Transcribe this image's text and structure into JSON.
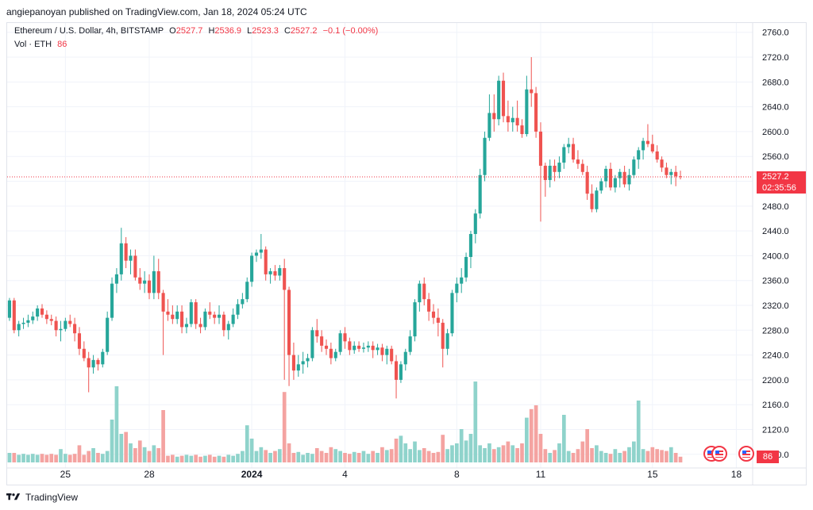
{
  "header": {
    "published_text": "angiepanoyan published on TradingView.com, Jan 18, 2024 05:24 UTC"
  },
  "legend": {
    "symbol": "Ethereum / U.S. Dollar, 4h, BITSTAMP",
    "open_label": "O",
    "open": "2527.7",
    "high_label": "H",
    "high": "2536.9",
    "low_label": "L",
    "low": "2523.3",
    "close_label": "C",
    "close": "2527.2",
    "change": "−0.1 (−0.00%)",
    "vol_label": "Vol · ETH",
    "vol": "86"
  },
  "price_tag": {
    "price": "2527.2",
    "countdown": "02:35:56"
  },
  "volume_tag": "86",
  "footer": {
    "brand": "TradingView"
  },
  "colors": {
    "up": "#26a69a",
    "down": "#ef5350",
    "up_vol": "#8fd3cb",
    "down_vol": "#f4a3a1",
    "tag": "#f23645",
    "grid": "#f0f3fa"
  },
  "icons": [
    "us-flag-icon",
    "us-flag-icon",
    "us-flag-icon",
    "tradingview-logo-icon"
  ],
  "chart_data": {
    "type": "candlestick",
    "title": "Ethereum / U.S. Dollar, 4h, BITSTAMP",
    "y_ticks": [
      2080,
      2120,
      2160,
      2200,
      2240,
      2280,
      2320,
      2360,
      2400,
      2440,
      2480,
      2520,
      2560,
      2600,
      2640,
      2680,
      2720,
      2760
    ],
    "y_tick_labels": [
      "2080.0",
      "2120.0",
      "2160.0",
      "2200.0",
      "2240.0",
      "2280.0",
      "2320.0",
      "2360.0",
      "2400.0",
      "2440.0",
      "2480.0",
      "2520.0",
      "2560.0",
      "2600.0",
      "2640.0",
      "2680.0",
      "2720.0",
      "2760.0"
    ],
    "ylim": [
      2058,
      2775
    ],
    "x_tick_labels": [
      {
        "label": "25",
        "bar": 12
      },
      {
        "label": "28",
        "bar": 30
      },
      {
        "label": "2024",
        "bar": 52
      },
      {
        "label": "4",
        "bar": 72
      },
      {
        "label": "8",
        "bar": 96
      },
      {
        "label": "11",
        "bar": 114
      },
      {
        "label": "15",
        "bar": 138
      },
      {
        "label": "18",
        "bar": 156
      }
    ],
    "bar_count": 160,
    "candles": [
      [
        2300,
        2332,
        2295,
        2328
      ],
      [
        2328,
        2332,
        2275,
        2280
      ],
      [
        2280,
        2295,
        2270,
        2290
      ],
      [
        2290,
        2300,
        2282,
        2292
      ],
      [
        2292,
        2305,
        2285,
        2296
      ],
      [
        2296,
        2310,
        2290,
        2302
      ],
      [
        2302,
        2320,
        2295,
        2315
      ],
      [
        2315,
        2322,
        2300,
        2305
      ],
      [
        2305,
        2312,
        2290,
        2298
      ],
      [
        2298,
        2305,
        2288,
        2295
      ],
      [
        2295,
        2302,
        2270,
        2280
      ],
      [
        2280,
        2295,
        2262,
        2282
      ],
      [
        2282,
        2300,
        2278,
        2295
      ],
      [
        2295,
        2305,
        2285,
        2290
      ],
      [
        2290,
        2300,
        2262,
        2275
      ],
      [
        2275,
        2285,
        2240,
        2250
      ],
      [
        2250,
        2262,
        2230,
        2235
      ],
      [
        2235,
        2245,
        2180,
        2220
      ],
      [
        2220,
        2240,
        2210,
        2232
      ],
      [
        2232,
        2235,
        2215,
        2225
      ],
      [
        2225,
        2250,
        2220,
        2245
      ],
      [
        2245,
        2310,
        2240,
        2300
      ],
      [
        2300,
        2365,
        2295,
        2355
      ],
      [
        2355,
        2380,
        2340,
        2370
      ],
      [
        2370,
        2445,
        2360,
        2420
      ],
      [
        2420,
        2430,
        2380,
        2392
      ],
      [
        2392,
        2410,
        2370,
        2400
      ],
      [
        2400,
        2410,
        2360,
        2365
      ],
      [
        2365,
        2380,
        2345,
        2355
      ],
      [
        2355,
        2375,
        2340,
        2360
      ],
      [
        2360,
        2370,
        2330,
        2340
      ],
      [
        2340,
        2400,
        2330,
        2375
      ],
      [
        2375,
        2395,
        2330,
        2340
      ],
      [
        2340,
        2345,
        2240,
        2310
      ],
      [
        2310,
        2330,
        2295,
        2305
      ],
      [
        2305,
        2320,
        2290,
        2298
      ],
      [
        2298,
        2320,
        2290,
        2310
      ],
      [
        2310,
        2320,
        2275,
        2285
      ],
      [
        2285,
        2300,
        2275,
        2290
      ],
      [
        2290,
        2330,
        2285,
        2325
      ],
      [
        2325,
        2330,
        2282,
        2290
      ],
      [
        2290,
        2300,
        2275,
        2285
      ],
      [
        2285,
        2315,
        2280,
        2310
      ],
      [
        2310,
        2325,
        2298,
        2305
      ],
      [
        2305,
        2310,
        2290,
        2300
      ],
      [
        2300,
        2320,
        2290,
        2305
      ],
      [
        2305,
        2310,
        2270,
        2280
      ],
      [
        2280,
        2295,
        2265,
        2290
      ],
      [
        2290,
        2315,
        2285,
        2305
      ],
      [
        2305,
        2330,
        2298,
        2322
      ],
      [
        2322,
        2340,
        2315,
        2330
      ],
      [
        2330,
        2365,
        2325,
        2358
      ],
      [
        2358,
        2405,
        2350,
        2400
      ],
      [
        2400,
        2410,
        2390,
        2405
      ],
      [
        2405,
        2435,
        2395,
        2410
      ],
      [
        2410,
        2415,
        2360,
        2370
      ],
      [
        2370,
        2380,
        2355,
        2375
      ],
      [
        2375,
        2385,
        2360,
        2368
      ],
      [
        2368,
        2385,
        2360,
        2380
      ],
      [
        2380,
        2395,
        2200,
        2345
      ],
      [
        2345,
        2350,
        2190,
        2240
      ],
      [
        2240,
        2260,
        2200,
        2215
      ],
      [
        2215,
        2240,
        2205,
        2225
      ],
      [
        2225,
        2245,
        2210,
        2230
      ],
      [
        2230,
        2242,
        2220,
        2235
      ],
      [
        2235,
        2285,
        2230,
        2280
      ],
      [
        2280,
        2298,
        2260,
        2270
      ],
      [
        2270,
        2280,
        2245,
        2255
      ],
      [
        2255,
        2265,
        2240,
        2250
      ],
      [
        2250,
        2260,
        2225,
        2235
      ],
      [
        2235,
        2250,
        2230,
        2245
      ],
      [
        2245,
        2280,
        2240,
        2275
      ],
      [
        2275,
        2285,
        2250,
        2262
      ],
      [
        2262,
        2268,
        2240,
        2248
      ],
      [
        2248,
        2262,
        2242,
        2255
      ],
      [
        2255,
        2262,
        2245,
        2250
      ],
      [
        2250,
        2260,
        2244,
        2252
      ],
      [
        2252,
        2262,
        2245,
        2255
      ],
      [
        2255,
        2262,
        2235,
        2248
      ],
      [
        2248,
        2258,
        2240,
        2252
      ],
      [
        2252,
        2258,
        2230,
        2240
      ],
      [
        2240,
        2255,
        2225,
        2250
      ],
      [
        2250,
        2255,
        2225,
        2230
      ],
      [
        2230,
        2240,
        2170,
        2200
      ],
      [
        2200,
        2230,
        2195,
        2225
      ],
      [
        2225,
        2250,
        2215,
        2245
      ],
      [
        2245,
        2280,
        2240,
        2270
      ],
      [
        2270,
        2330,
        2262,
        2325
      ],
      [
        2325,
        2360,
        2310,
        2355
      ],
      [
        2355,
        2365,
        2320,
        2330
      ],
      [
        2330,
        2340,
        2295,
        2310
      ],
      [
        2310,
        2322,
        2290,
        2300
      ],
      [
        2300,
        2315,
        2270,
        2292
      ],
      [
        2292,
        2298,
        2220,
        2250
      ],
      [
        2250,
        2282,
        2240,
        2275
      ],
      [
        2275,
        2345,
        2270,
        2340
      ],
      [
        2340,
        2365,
        2325,
        2355
      ],
      [
        2355,
        2380,
        2340,
        2365
      ],
      [
        2365,
        2405,
        2358,
        2398
      ],
      [
        2398,
        2440,
        2380,
        2435
      ],
      [
        2435,
        2475,
        2420,
        2468
      ],
      [
        2468,
        2540,
        2460,
        2530
      ],
      [
        2530,
        2600,
        2520,
        2590
      ],
      [
        2590,
        2660,
        2585,
        2630
      ],
      [
        2630,
        2660,
        2600,
        2620
      ],
      [
        2620,
        2690,
        2610,
        2682
      ],
      [
        2682,
        2695,
        2615,
        2625
      ],
      [
        2625,
        2650,
        2600,
        2615
      ],
      [
        2615,
        2640,
        2600,
        2622
      ],
      [
        2622,
        2650,
        2600,
        2610
      ],
      [
        2610,
        2620,
        2590,
        2596
      ],
      [
        2596,
        2690,
        2592,
        2668
      ],
      [
        2668,
        2720,
        2640,
        2662
      ],
      [
        2662,
        2672,
        2590,
        2600
      ],
      [
        2600,
        2615,
        2455,
        2545
      ],
      [
        2545,
        2550,
        2495,
        2522
      ],
      [
        2522,
        2555,
        2510,
        2545
      ],
      [
        2545,
        2555,
        2520,
        2535
      ],
      [
        2535,
        2560,
        2525,
        2550
      ],
      [
        2550,
        2580,
        2540,
        2575
      ],
      [
        2575,
        2590,
        2565,
        2580
      ],
      [
        2580,
        2590,
        2550,
        2555
      ],
      [
        2555,
        2570,
        2540,
        2548
      ],
      [
        2548,
        2555,
        2530,
        2535
      ],
      [
        2535,
        2545,
        2490,
        2500
      ],
      [
        2500,
        2515,
        2470,
        2475
      ],
      [
        2475,
        2510,
        2470,
        2505
      ],
      [
        2505,
        2525,
        2500,
        2520
      ],
      [
        2520,
        2545,
        2510,
        2540
      ],
      [
        2540,
        2550,
        2505,
        2510
      ],
      [
        2510,
        2530,
        2502,
        2525
      ],
      [
        2525,
        2540,
        2510,
        2535
      ],
      [
        2535,
        2545,
        2510,
        2515
      ],
      [
        2515,
        2540,
        2505,
        2530
      ],
      [
        2530,
        2560,
        2525,
        2555
      ],
      [
        2555,
        2575,
        2540,
        2570
      ],
      [
        2570,
        2590,
        2555,
        2585
      ],
      [
        2585,
        2612,
        2575,
        2580
      ],
      [
        2580,
        2595,
        2565,
        2568
      ],
      [
        2568,
        2578,
        2550,
        2555
      ],
      [
        2555,
        2560,
        2535,
        2542
      ],
      [
        2542,
        2550,
        2525,
        2530
      ],
      [
        2530,
        2540,
        2515,
        2535
      ],
      [
        2535,
        2545,
        2512,
        2528
      ],
      [
        2528,
        2537,
        2523,
        2527
      ]
    ],
    "volumes": [
      1,
      1,
      0.8,
      0.9,
      0.8,
      0.9,
      0.8,
      0.9,
      0.8,
      0.9,
      0.8,
      1.4,
      0.9,
      0.8,
      0.9,
      1.8,
      0.8,
      1.2,
      1.5,
      1.0,
      0.9,
      1.2,
      4.5,
      8.0,
      3.0,
      3.2,
      2.0,
      1.5,
      2.3,
      1.6,
      1.2,
      1.8,
      1.5,
      5.5,
      0.7,
      0.8,
      0.6,
      0.7,
      0.8,
      0.7,
      0.8,
      0.6,
      0.7,
      0.8,
      0.6,
      0.7,
      0.6,
      0.8,
      0.7,
      0.9,
      1.2,
      3.9,
      2.5,
      1.2,
      1.6,
      1.3,
      1.0,
      1.2,
      1.4,
      7.4,
      2.0,
      1.0,
      1.1,
      0.8,
      1.0,
      0.9,
      1.5,
      1.2,
      1.0,
      1.6,
      1.4,
      1.2,
      1.0,
      0.9,
      1.1,
      1.0,
      1.2,
      0.9,
      1.2,
      1.0,
      1.6,
      1.3,
      1.4,
      2.5,
      2.8,
      2.0,
      1.4,
      2.2,
      1.3,
      1.5,
      1.2,
      1.0,
      1.1,
      2.9,
      1.4,
      1.8,
      2.0,
      3.5,
      2.3,
      3.0,
      8.5,
      1.8,
      1.5,
      2.0,
      1.4,
      1.6,
      1.8,
      2.2,
      1.8,
      1.5,
      2.0,
      4.7,
      5.6,
      6.0,
      3.0,
      1.4,
      1.0,
      1.3,
      2.0,
      5.0,
      1.2,
      1.0,
      1.4,
      2.2,
      3.5,
      1.5,
      1.8,
      1.2,
      1.0,
      0.9,
      1.4,
      1.0,
      1.2,
      1.6,
      2.2,
      6.5,
      1.4,
      1.2,
      1.6,
      1.4,
      1.3,
      1.2,
      1.6,
      1.0,
      0.6
    ]
  }
}
